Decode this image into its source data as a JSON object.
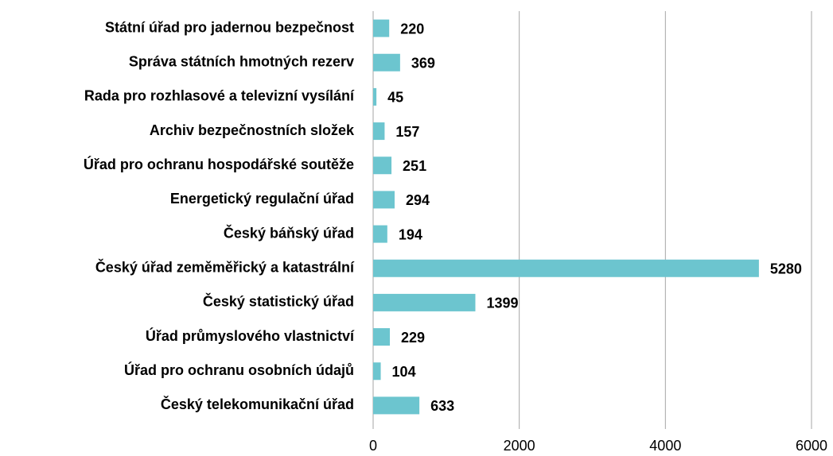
{
  "chart_data": {
    "type": "bar",
    "orientation": "horizontal",
    "categories": [
      "Státní úřad pro jadernou bezpečnost",
      "Správa státních hmotných rezerv",
      "Rada pro rozhlasové a televizní vysílání",
      "Archiv bezpečnostních složek",
      "Úřad pro ochranu hospodářské soutěže",
      "Energetický regulační úřad",
      "Český báňský úřad",
      "Český úřad zeměměřický a katastrální",
      "Český statistický úřad",
      "Úřad průmyslového vlastnictví",
      "Úřad pro ochranu osobních údajů",
      "Český telekomunikační úřad"
    ],
    "values": [
      220,
      369,
      45,
      157,
      251,
      294,
      194,
      5280,
      1399,
      229,
      104,
      633
    ],
    "color": "#6cc5cf",
    "xlim": [
      0,
      6000
    ],
    "xticks": [
      0,
      2000,
      4000,
      6000
    ],
    "grid": true
  }
}
